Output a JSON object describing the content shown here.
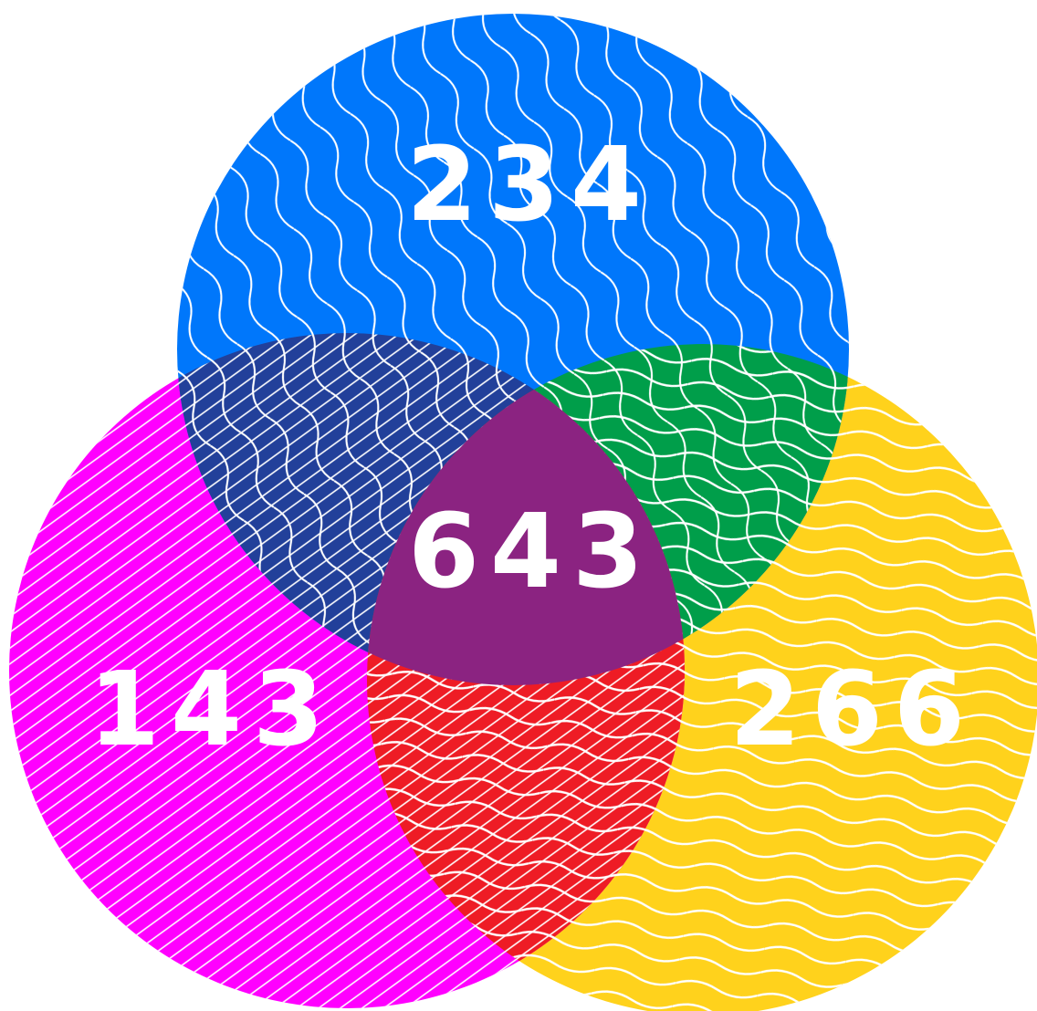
{
  "sets": [
    {
      "value": 234,
      "color": "#0077fb"
    },
    {
      "value": 143,
      "color": "#ff00ff"
    },
    {
      "value": 266,
      "color": "#ffd21c"
    }
  ],
  "center": {
    "value": 643,
    "color": "#8b2381"
  }
}
